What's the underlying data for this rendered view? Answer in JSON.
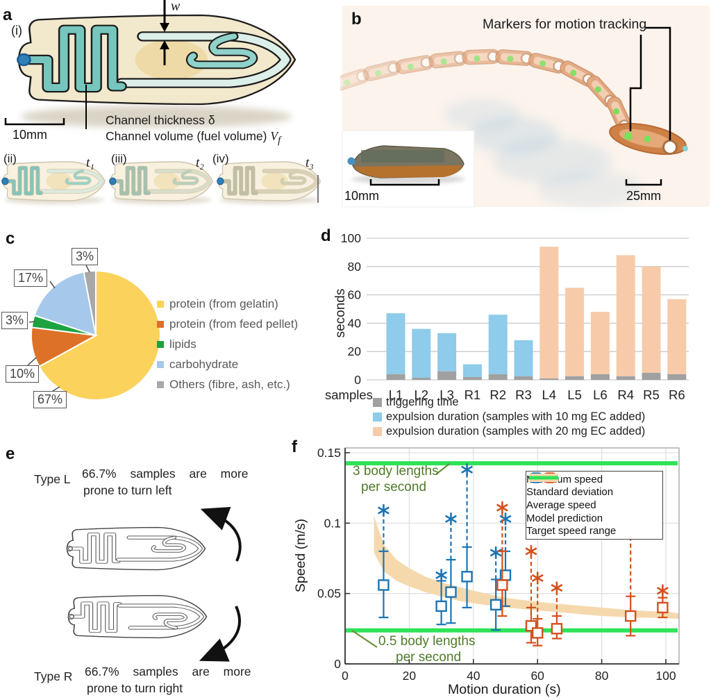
{
  "panel_a": {
    "letter": "a",
    "sub_i": "(i)",
    "sub_ii": "(ii)",
    "sub_iii": "(iii)",
    "sub_iv": "(iv)",
    "w_label": "w",
    "thickness_label": "Channel thickness δ",
    "volume_label": "Channel volume (fuel volume)",
    "volume_symbol": "V",
    "volume_symbol_sub": "f",
    "scalebar": "10mm",
    "t1": "t₁",
    "t2": "t₂",
    "t3": "t₃"
  },
  "panel_b": {
    "letter": "b",
    "marker_label": "Markers for motion tracking",
    "inset_scalebar": "10mm",
    "scalebar": "25mm"
  },
  "panel_c": {
    "letter": "c",
    "callouts": [
      "3%",
      "17%",
      "3%",
      "10%",
      "67%"
    ]
  },
  "panel_d": {
    "letter": "d"
  },
  "panel_e": {
    "letter": "e",
    "type_l": "Type L",
    "type_r": "Type R",
    "text_l1": "66.7% samples are more",
    "text_l2": "prone to turn left",
    "text_r1": "66.7% samples are more",
    "text_r2": "prone to turn right"
  },
  "panel_f": {
    "letter": "f",
    "ylabel": "Speed  (m/s)",
    "xlabel": "Motion duration (s)",
    "ann_top1": "3 body lengths",
    "ann_top2": "per second",
    "ann_bot1": "0.5 body lengths",
    "ann_bot2": "per second",
    "legend": [
      "Maximum speed",
      "Standard deviation",
      "Average speed",
      "Model prediction",
      "Target speed range"
    ]
  },
  "colors": {
    "pie": [
      "#FBD25B",
      "#DD7127",
      "#1CA340",
      "#A6C8EA",
      "#A8A8A8"
    ],
    "bar_trigger": "#A0A0A0",
    "bar_ec10": "#8FCBEA",
    "bar_ec20": "#F7CBA9",
    "scatter_blue": "#1B74B3",
    "scatter_orange": "#D4501E",
    "model_band": "#F5D9AD",
    "target_green": "#2EE357",
    "annotation_olive": "#4F7A28",
    "channel_teal": "#76C6BE",
    "hull_cream": "#F2E8CC"
  },
  "chart_data": [
    {
      "type": "pie",
      "labels": [
        "protein (from gelatin)",
        "protein (from feed pellet)",
        "lipids",
        "carbohydrate",
        "Others (fibre, ash, etc.)"
      ],
      "values": [
        67,
        10,
        3,
        17,
        3
      ],
      "colors": [
        "#FBD25B",
        "#DD7127",
        "#1CA340",
        "#A6C8EA",
        "#A8A8A8"
      ],
      "data_labels": [
        "67%",
        "10%",
        "3%",
        "17%",
        "3%"
      ],
      "start_angle_deg": 0,
      "direction": "clockwise",
      "legend_position": "right"
    },
    {
      "type": "bar",
      "title": "",
      "xlabel": "samples",
      "ylabel": "seconds",
      "ylim": [
        0,
        100
      ],
      "yticks": [
        0,
        20,
        40,
        60,
        80,
        100
      ],
      "grid": true,
      "categories": [
        "L1",
        "L2",
        "L3",
        "R1",
        "R2",
        "R3",
        "L4",
        "L5",
        "L6",
        "R4",
        "R5",
        "R6"
      ],
      "stacked": true,
      "triggering_time": [
        4,
        1.5,
        6,
        2,
        4,
        2.5,
        1,
        2.5,
        4,
        2.5,
        5,
        4
      ],
      "total_duration": [
        47,
        36,
        33,
        11,
        46,
        28,
        94,
        65,
        48,
        88,
        80,
        57
      ],
      "group": [
        "10mg",
        "10mg",
        "10mg",
        "10mg",
        "10mg",
        "10mg",
        "20mg",
        "20mg",
        "20mg",
        "20mg",
        "20mg",
        "20mg"
      ],
      "legend": [
        {
          "label": "triggering time",
          "color": "#A0A0A0"
        },
        {
          "label": "expulsion duration (samples with 10 mg EC added)",
          "color": "#8FCBEA"
        },
        {
          "label": "expulsion duration (samples with 20 mg EC added)",
          "color": "#F7CBA9"
        }
      ]
    },
    {
      "type": "scatter",
      "xlabel": "Motion duration (s)",
      "ylabel": "Speed (m/s)",
      "xlim": [
        0,
        104
      ],
      "ylim": [
        0,
        0.15
      ],
      "xticks": [
        0,
        20,
        40,
        60,
        80,
        100
      ],
      "yticks": [
        0,
        0.05,
        0.1,
        0.15
      ],
      "ytick_labels": [
        "0",
        "0.05",
        "0.1",
        "0.15"
      ],
      "target_speed_upper": 0.1425,
      "target_speed_lower": 0.0238,
      "annotations": [
        "3 body lengths per second",
        "0.5 body lengths per second"
      ],
      "legend_position": "upper right",
      "series": [
        {
          "name": "samples with 10 mg EC",
          "color": "#1B74B3",
          "points": [
            {
              "x": 12,
              "avg": 0.056,
              "sd_low": 0.033,
              "sd_high": 0.08,
              "max": 0.109
            },
            {
              "x": 30,
              "avg": 0.041,
              "sd_low": 0.028,
              "sd_high": 0.059,
              "max": 0.063
            },
            {
              "x": 33,
              "avg": 0.051,
              "sd_low": 0.029,
              "sd_high": 0.074,
              "max": 0.103
            },
            {
              "x": 38,
              "avg": 0.062,
              "sd_low": 0.04,
              "sd_high": 0.083,
              "max": 0.138
            },
            {
              "x": 47,
              "avg": 0.042,
              "sd_low": 0.024,
              "sd_high": 0.06,
              "max": 0.079
            },
            {
              "x": 50,
              "avg": 0.063,
              "sd_low": 0.041,
              "sd_high": 0.08,
              "max": 0.103
            }
          ]
        },
        {
          "name": "samples with 20 mg EC",
          "color": "#D4501E",
          "points": [
            {
              "x": 49,
              "avg": 0.056,
              "sd_low": 0.034,
              "sd_high": 0.08,
              "max": 0.111
            },
            {
              "x": 58,
              "avg": 0.027,
              "sd_low": 0.015,
              "sd_high": 0.04,
              "max": 0.08
            },
            {
              "x": 60,
              "avg": 0.022,
              "sd_low": 0.013,
              "sd_high": 0.032,
              "max": 0.061
            },
            {
              "x": 66,
              "avg": 0.025,
              "sd_low": 0.018,
              "sd_high": 0.034,
              "max": 0.054
            },
            {
              "x": 89,
              "avg": 0.034,
              "sd_low": 0.02,
              "sd_high": 0.048,
              "max": 0.095
            },
            {
              "x": 99,
              "avg": 0.04,
              "sd_low": 0.033,
              "sd_high": 0.047,
              "max": 0.052
            }
          ]
        }
      ],
      "model_band": {
        "x": [
          9,
          12,
          16,
          20,
          25,
          30,
          35,
          40,
          50,
          60,
          70,
          80,
          90,
          100,
          104
        ],
        "upper": [
          0.105,
          0.085,
          0.074,
          0.068,
          0.062,
          0.058,
          0.055,
          0.052,
          0.047,
          0.044,
          0.042,
          0.04,
          0.038,
          0.037,
          0.036
        ],
        "lower": [
          0.079,
          0.066,
          0.059,
          0.055,
          0.051,
          0.048,
          0.045,
          0.043,
          0.04,
          0.038,
          0.036,
          0.034,
          0.033,
          0.0325,
          0.032
        ]
      }
    }
  ]
}
